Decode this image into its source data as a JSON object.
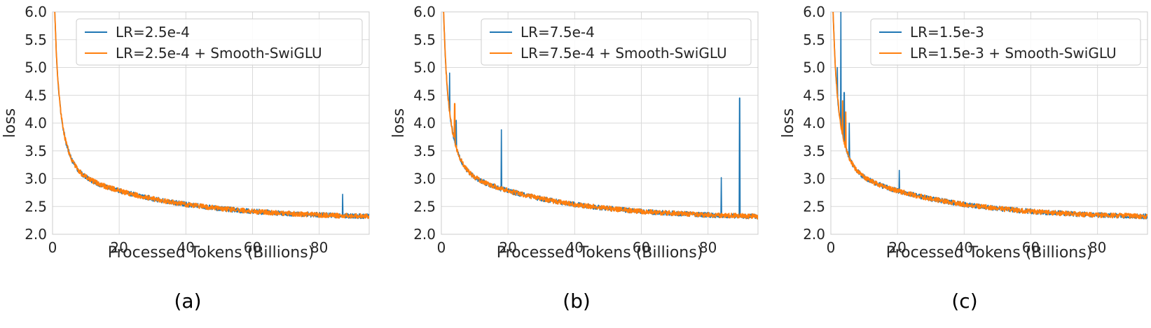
{
  "chart_data": [
    {
      "type": "line",
      "panel_label": "(a)",
      "xlabel": "Processed Tokens (Billions)",
      "ylabel": "loss",
      "xlim": [
        0,
        95
      ],
      "ylim": [
        2.0,
        6.0
      ],
      "x_ticks": [
        0,
        20,
        40,
        60,
        80
      ],
      "y_ticks": [
        2.0,
        2.5,
        3.0,
        3.5,
        4.0,
        4.5,
        5.0,
        5.5,
        6.0
      ],
      "grid": true,
      "legend_position": "top-right",
      "series": [
        {
          "name": "LR=2.5e-4",
          "color": "#1f77b4",
          "spikes": [
            [
              87,
              2.72
            ]
          ]
        },
        {
          "name": "LR=2.5e-4 + Smooth-SwiGLU",
          "color": "#ff7f0e",
          "spikes": []
        }
      ]
    },
    {
      "type": "line",
      "panel_label": "(b)",
      "xlabel": "Processed Tokens (Billions)",
      "ylabel": "loss",
      "xlim": [
        0,
        95
      ],
      "ylim": [
        2.0,
        6.0
      ],
      "x_ticks": [
        0,
        20,
        40,
        60,
        80
      ],
      "y_ticks": [
        2.0,
        2.5,
        3.0,
        3.5,
        4.0,
        4.5,
        5.0,
        5.5,
        6.0
      ],
      "grid": true,
      "legend_position": "top-right",
      "series": [
        {
          "name": "LR=7.5e-4",
          "color": "#1f77b4",
          "spikes": [
            [
              2.5,
              4.9
            ],
            [
              4.5,
              4.05
            ],
            [
              18,
              3.88
            ],
            [
              84,
              3.02
            ],
            [
              89.5,
              4.45
            ]
          ]
        },
        {
          "name": "LR=7.5e-4 + Smooth-SwiGLU",
          "color": "#ff7f0e",
          "spikes": [
            [
              4,
              4.35
            ]
          ]
        }
      ]
    },
    {
      "type": "line",
      "panel_label": "(c)",
      "xlabel": "Processed Tokens (Billions)",
      "ylabel": "loss",
      "xlim": [
        0,
        95
      ],
      "ylim": [
        2.0,
        6.0
      ],
      "x_ticks": [
        0,
        20,
        40,
        60,
        80
      ],
      "y_ticks": [
        2.0,
        2.5,
        3.0,
        3.5,
        4.0,
        4.5,
        5.0,
        5.5,
        6.0
      ],
      "grid": true,
      "legend_position": "top-right",
      "series": [
        {
          "name": "LR=1.5e-3",
          "color": "#1f77b4",
          "spikes": [
            [
              2,
              5.0
            ],
            [
              3,
              6.0
            ],
            [
              4,
              4.55
            ],
            [
              5.5,
              4.0
            ],
            [
              20.5,
              3.15
            ]
          ]
        },
        {
          "name": "LR=1.5e-3 + Smooth-SwiGLU",
          "color": "#ff7f0e",
          "spikes": [
            [
              3.5,
              4.4
            ],
            [
              4.5,
              4.2
            ]
          ]
        }
      ]
    }
  ]
}
